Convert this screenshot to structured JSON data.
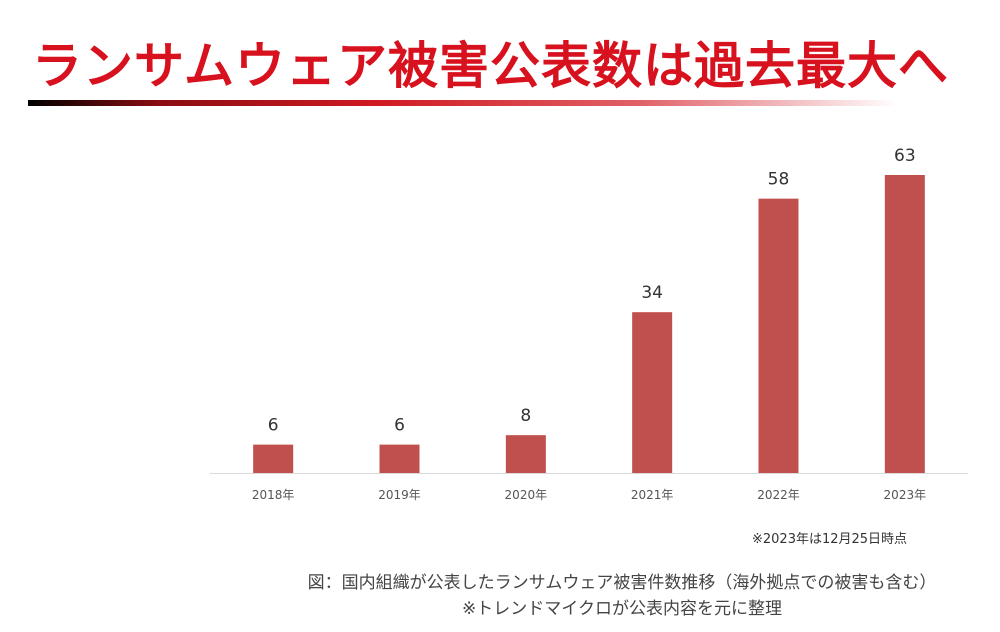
{
  "header": {
    "title": "ランサムウェア被害公表数は過去最大へ"
  },
  "chart_data": {
    "type": "bar",
    "title": "ランサムウェア被害公表数は過去最大へ",
    "categories": [
      "2018年",
      "2019年",
      "2020年",
      "2021年",
      "2022年",
      "2023年"
    ],
    "values": [
      6,
      6,
      8,
      34,
      58,
      63
    ],
    "xlabel": "",
    "ylabel": "",
    "ylim": [
      0,
      63
    ],
    "grid": false,
    "bar_color": "#c0504d"
  },
  "footnote": "※2023年は12月25日時点",
  "caption": {
    "line1": "図：国内組織が公表したランサムウェア被害件数推移（海外拠点での被害も含む）",
    "line2": "※トレンドマイクロが公表内容を元に整理"
  }
}
